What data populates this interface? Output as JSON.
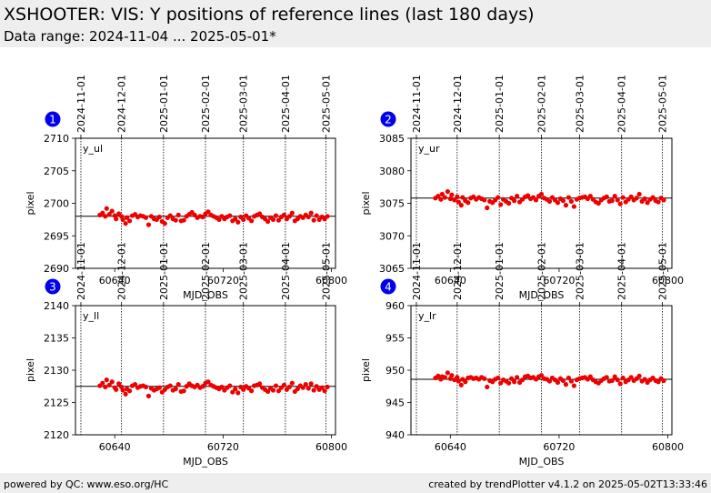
{
  "header": {
    "title": "XSHOOTER: VIS: Y positions of reference lines (last 180 days)",
    "subtitle": "Data range: 2024-11-04 ... 2025-05-01*"
  },
  "footer": {
    "left": "powered by QC: www.eso.org/HC",
    "right": "created by trendPlotter v4.1.2 on 2025-05-02T13:33:46"
  },
  "colors": {
    "points": "#ee0000",
    "badge": "#0000ee"
  },
  "chart_data": [
    {
      "type": "scatter",
      "badge": "1",
      "label": "y_ul",
      "xlabel": "MJD_OBS",
      "ylabel": "pixel",
      "xlim": [
        60611,
        60803
      ],
      "ylim": [
        2690,
        2710
      ],
      "xticks": [
        60640,
        60720,
        60800
      ],
      "yticks": [
        2690,
        2695,
        2700,
        2705,
        2710
      ],
      "reference": 2698,
      "date_ticks": [
        "2024-11-01",
        "2024-12-01",
        "2025-01-01",
        "2025-02-01",
        "2025-03-01",
        "2025-04-01",
        "2025-05-01"
      ],
      "date_mjd": [
        60615,
        60645,
        60676,
        60707,
        60735,
        60766,
        60796
      ],
      "x": [
        60629,
        60631,
        60633,
        60634,
        60636,
        60638,
        60640,
        60641,
        60643,
        60645,
        60646,
        60648,
        60649,
        60651,
        60653,
        60655,
        60657,
        60659,
        60661,
        60663,
        60665,
        60667,
        60669,
        60671,
        60673,
        60675,
        60677,
        60679,
        60681,
        60683,
        60685,
        60687,
        60689,
        60691,
        60693,
        60695,
        60697,
        60699,
        60701,
        60703,
        60705,
        60707,
        60709,
        60711,
        60713,
        60715,
        60717,
        60719,
        60721,
        60723,
        60725,
        60727,
        60729,
        60731,
        60733,
        60735,
        60737,
        60739,
        60741,
        60743,
        60745,
        60747,
        60749,
        60751,
        60753,
        60755,
        60757,
        60759,
        60761,
        60763,
        60765,
        60767,
        60769,
        60771,
        60773,
        60775,
        60777,
        60779,
        60781,
        60783,
        60785,
        60787,
        60789,
        60791,
        60793,
        60795,
        60797
      ],
      "y": [
        2698.2,
        2698.5,
        2698.0,
        2699.2,
        2698.3,
        2698.8,
        2698.1,
        2697.6,
        2698.4,
        2698.0,
        2697.5,
        2696.9,
        2697.8,
        2697.3,
        2698.1,
        2698.3,
        2697.9,
        2698.1,
        2698.0,
        2697.8,
        2696.7,
        2698.0,
        2697.6,
        2697.5,
        2697.9,
        2697.2,
        2696.9,
        2697.8,
        2698.1,
        2697.6,
        2697.4,
        2698.2,
        2697.3,
        2697.4,
        2698.0,
        2698.3,
        2698.6,
        2698.2,
        2697.8,
        2698.0,
        2697.9,
        2698.4,
        2698.7,
        2698.2,
        2698.0,
        2697.8,
        2697.5,
        2698.0,
        2697.6,
        2697.9,
        2698.1,
        2697.3,
        2697.6,
        2697.1,
        2697.9,
        2697.5,
        2698.1,
        2697.7,
        2697.3,
        2698.0,
        2698.2,
        2698.4,
        2697.9,
        2697.6,
        2697.2,
        2697.8,
        2697.5,
        2698.1,
        2697.4,
        2697.9,
        2698.2,
        2697.6,
        2698.0,
        2698.5,
        2697.3,
        2697.6,
        2698.0,
        2697.8,
        2698.2,
        2697.9,
        2698.5,
        2697.4,
        2698.1,
        2697.5,
        2697.9,
        2697.6,
        2698.0
      ]
    },
    {
      "type": "scatter",
      "badge": "2",
      "label": "y_ur",
      "xlabel": "MJD_OBS",
      "ylabel": "pixel",
      "xlim": [
        60611,
        60803
      ],
      "ylim": [
        3065,
        3085
      ],
      "xticks": [
        60640,
        60720,
        60800
      ],
      "yticks": [
        3065,
        3070,
        3075,
        3080,
        3085
      ],
      "reference": 3075.8,
      "date_ticks": [
        "2024-11-01",
        "2024-12-01",
        "2025-01-01",
        "2025-02-01",
        "2025-03-01",
        "2025-04-01",
        "2025-05-01"
      ],
      "date_mjd": [
        60615,
        60645,
        60676,
        60707,
        60735,
        60766,
        60796
      ],
      "x": [
        60629,
        60631,
        60633,
        60634,
        60636,
        60638,
        60640,
        60641,
        60643,
        60645,
        60646,
        60648,
        60649,
        60651,
        60653,
        60655,
        60657,
        60659,
        60661,
        60663,
        60665,
        60667,
        60669,
        60671,
        60673,
        60675,
        60677,
        60679,
        60681,
        60683,
        60685,
        60687,
        60689,
        60691,
        60693,
        60695,
        60697,
        60699,
        60701,
        60703,
        60705,
        60707,
        60709,
        60711,
        60713,
        60715,
        60717,
        60719,
        60721,
        60723,
        60725,
        60727,
        60729,
        60731,
        60733,
        60735,
        60737,
        60739,
        60741,
        60743,
        60745,
        60747,
        60749,
        60751,
        60753,
        60755,
        60757,
        60759,
        60761,
        60763,
        60765,
        60767,
        60769,
        60771,
        60773,
        60775,
        60777,
        60779,
        60781,
        60783,
        60785,
        60787,
        60789,
        60791,
        60793,
        60795,
        60797
      ],
      "y": [
        3075.8,
        3076.1,
        3075.6,
        3076.4,
        3075.9,
        3076.8,
        3075.7,
        3076.3,
        3075.5,
        3076.0,
        3075.2,
        3074.7,
        3075.9,
        3075.4,
        3075.1,
        3075.8,
        3076.0,
        3075.6,
        3075.9,
        3075.7,
        3075.5,
        3074.3,
        3075.3,
        3075.1,
        3075.5,
        3075.9,
        3074.8,
        3075.6,
        3075.3,
        3075.0,
        3075.8,
        3075.4,
        3076.1,
        3075.2,
        3075.6,
        3076.0,
        3076.2,
        3075.7,
        3075.9,
        3075.5,
        3076.1,
        3076.4,
        3075.8,
        3075.6,
        3075.3,
        3075.9,
        3075.5,
        3075.1,
        3075.7,
        3075.4,
        3074.7,
        3075.9,
        3075.3,
        3074.5,
        3075.6,
        3075.8,
        3075.9,
        3076.0,
        3075.7,
        3076.1,
        3075.6,
        3075.2,
        3075.0,
        3075.5,
        3075.8,
        3076.0,
        3075.3,
        3075.4,
        3076.1,
        3075.5,
        3074.9,
        3075.9,
        3075.2,
        3075.6,
        3076.0,
        3075.5,
        3075.8,
        3076.4,
        3075.3,
        3075.7,
        3075.1,
        3075.6,
        3075.9,
        3075.4,
        3075.2,
        3075.8,
        3075.5
      ]
    },
    {
      "type": "scatter",
      "badge": "3",
      "label": "y_ll",
      "xlabel": "MJD_OBS",
      "ylabel": "pixel",
      "xlim": [
        60611,
        60803
      ],
      "ylim": [
        2120,
        2140
      ],
      "xticks": [
        60640,
        60720,
        60800
      ],
      "yticks": [
        2120,
        2125,
        2130,
        2135,
        2140
      ],
      "reference": 2127.5,
      "date_ticks": [
        "2024-11-01",
        "2024-12-01",
        "2025-01-01",
        "2025-02-01",
        "2025-03-01",
        "2025-04-01",
        "2025-05-01"
      ],
      "date_mjd": [
        60615,
        60645,
        60676,
        60707,
        60735,
        60766,
        60796
      ],
      "x": [
        60629,
        60631,
        60633,
        60634,
        60636,
        60638,
        60640,
        60641,
        60643,
        60645,
        60646,
        60648,
        60649,
        60651,
        60653,
        60655,
        60657,
        60659,
        60661,
        60663,
        60665,
        60667,
        60669,
        60671,
        60673,
        60675,
        60677,
        60679,
        60681,
        60683,
        60685,
        60687,
        60689,
        60691,
        60693,
        60695,
        60697,
        60699,
        60701,
        60703,
        60705,
        60707,
        60709,
        60711,
        60713,
        60715,
        60717,
        60719,
        60721,
        60723,
        60725,
        60727,
        60729,
        60731,
        60733,
        60735,
        60737,
        60739,
        60741,
        60743,
        60745,
        60747,
        60749,
        60751,
        60753,
        60755,
        60757,
        60759,
        60761,
        60763,
        60765,
        60767,
        60769,
        60771,
        60773,
        60775,
        60777,
        60779,
        60781,
        60783,
        60785,
        60787,
        60789,
        60791,
        60793,
        60795,
        60797
      ],
      "y": [
        2127.6,
        2128.0,
        2127.4,
        2128.5,
        2127.7,
        2128.2,
        2127.3,
        2127.0,
        2127.9,
        2127.4,
        2126.9,
        2126.3,
        2127.1,
        2126.8,
        2127.6,
        2127.8,
        2127.3,
        2127.5,
        2127.6,
        2127.4,
        2126.0,
        2127.2,
        2126.9,
        2127.1,
        2127.3,
        2126.6,
        2127.0,
        2127.4,
        2127.6,
        2126.9,
        2127.1,
        2127.8,
        2126.7,
        2126.8,
        2127.5,
        2127.9,
        2127.6,
        2127.4,
        2127.7,
        2127.3,
        2127.5,
        2128.0,
        2128.2,
        2127.7,
        2127.5,
        2127.3,
        2127.1,
        2127.4,
        2126.9,
        2127.3,
        2127.6,
        2126.6,
        2127.1,
        2126.5,
        2127.4,
        2127.0,
        2127.5,
        2127.2,
        2126.8,
        2127.6,
        2127.7,
        2127.9,
        2127.3,
        2127.0,
        2126.7,
        2127.2,
        2126.9,
        2127.6,
        2126.8,
        2127.3,
        2127.7,
        2127.0,
        2127.4,
        2128.0,
        2126.7,
        2127.1,
        2127.6,
        2127.3,
        2127.8,
        2127.2,
        2127.9,
        2126.9,
        2127.5,
        2127.0,
        2127.3,
        2126.8,
        2127.4
      ]
    },
    {
      "type": "scatter",
      "badge": "4",
      "label": "y_lr",
      "xlabel": "MJD_OBS",
      "ylabel": "pixel",
      "xlim": [
        60611,
        60803
      ],
      "ylim": [
        940,
        960
      ],
      "xticks": [
        60640,
        60720,
        60800
      ],
      "yticks": [
        940,
        945,
        950,
        955,
        960
      ],
      "reference": 948.6,
      "date_ticks": [
        "2024-11-01",
        "2024-12-01",
        "2025-01-01",
        "2025-02-01",
        "2025-03-01",
        "2025-04-01",
        "2025-05-01"
      ],
      "date_mjd": [
        60615,
        60645,
        60676,
        60707,
        60735,
        60766,
        60796
      ],
      "x": [
        60629,
        60631,
        60633,
        60634,
        60636,
        60638,
        60640,
        60641,
        60643,
        60645,
        60646,
        60648,
        60649,
        60651,
        60653,
        60655,
        60657,
        60659,
        60661,
        60663,
        60665,
        60667,
        60669,
        60671,
        60673,
        60675,
        60677,
        60679,
        60681,
        60683,
        60685,
        60687,
        60689,
        60691,
        60693,
        60695,
        60697,
        60699,
        60701,
        60703,
        60705,
        60707,
        60709,
        60711,
        60713,
        60715,
        60717,
        60719,
        60721,
        60723,
        60725,
        60727,
        60729,
        60731,
        60733,
        60735,
        60737,
        60739,
        60741,
        60743,
        60745,
        60747,
        60749,
        60751,
        60753,
        60755,
        60757,
        60759,
        60761,
        60763,
        60765,
        60767,
        60769,
        60771,
        60773,
        60775,
        60777,
        60779,
        60781,
        60783,
        60785,
        60787,
        60789,
        60791,
        60793,
        60795,
        60797
      ],
      "y": [
        948.8,
        949.1,
        948.6,
        949.0,
        948.9,
        949.6,
        948.7,
        949.2,
        948.5,
        948.9,
        948.3,
        947.7,
        948.6,
        948.2,
        948.8,
        948.9,
        948.7,
        948.8,
        948.6,
        948.9,
        948.7,
        947.4,
        948.4,
        948.2,
        948.6,
        948.8,
        948.0,
        948.5,
        948.3,
        948.0,
        948.7,
        948.2,
        948.9,
        948.1,
        948.5,
        949.0,
        949.1,
        948.8,
        948.9,
        948.6,
        949.0,
        949.2,
        948.7,
        948.6,
        948.3,
        948.8,
        948.5,
        948.1,
        948.7,
        948.4,
        947.8,
        948.8,
        948.3,
        947.6,
        948.5,
        948.7,
        948.8,
        948.9,
        948.6,
        949.0,
        948.5,
        948.2,
        948.0,
        948.4,
        948.7,
        948.9,
        948.3,
        948.4,
        949.0,
        948.5,
        947.9,
        948.8,
        948.2,
        948.5,
        948.9,
        948.4,
        948.7,
        949.1,
        948.3,
        948.6,
        948.1,
        948.5,
        948.8,
        948.4,
        948.2,
        948.7,
        948.4
      ]
    }
  ]
}
